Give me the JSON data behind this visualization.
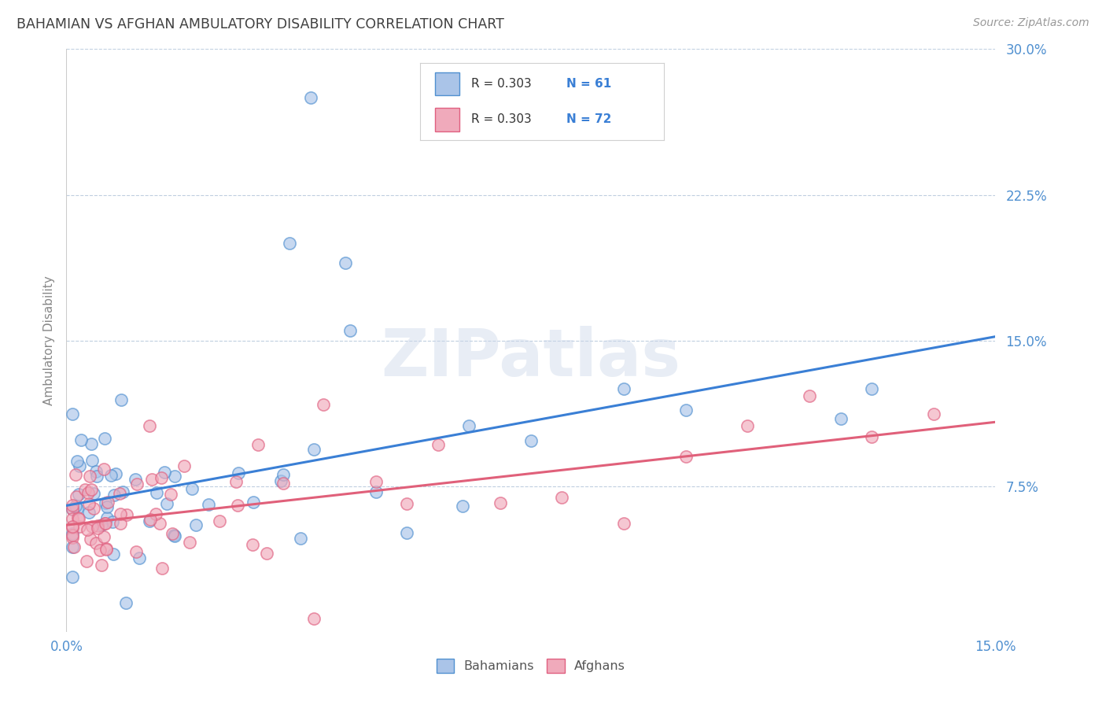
{
  "title": "BAHAMIAN VS AFGHAN AMBULATORY DISABILITY CORRELATION CHART",
  "source": "Source: ZipAtlas.com",
  "ylabel": "Ambulatory Disability",
  "xlim": [
    0.0,
    0.15
  ],
  "ylim": [
    0.0,
    0.3
  ],
  "xticks": [
    0.0,
    0.15
  ],
  "xtick_labels": [
    "0.0%",
    "15.0%"
  ],
  "yticks": [
    0.075,
    0.15,
    0.225,
    0.3
  ],
  "ytick_labels": [
    "7.5%",
    "15.0%",
    "22.5%",
    "30.0%"
  ],
  "bahamian_face_color": "#aac4e8",
  "bahamian_edge_color": "#5090d0",
  "afghan_face_color": "#f0aabb",
  "afghan_edge_color": "#e06080",
  "bahamian_line_color": "#3a7fd5",
  "afghan_line_color": "#e0607a",
  "legend_text_color": "#3a7fd5",
  "legend_label_color": "#333333",
  "R_bahamian": 0.303,
  "N_bahamian": 61,
  "R_afghan": 0.303,
  "N_afghan": 72,
  "watermark": "ZIPatlas",
  "background_color": "#ffffff",
  "grid_color": "#c0cfe0",
  "title_color": "#404040",
  "axis_label_color": "#888888",
  "tick_color": "#5090d0",
  "bah_line_x0": 0.0,
  "bah_line_x1": 0.15,
  "bah_line_y0": 0.065,
  "bah_line_y1": 0.152,
  "afg_line_x0": 0.0,
  "afg_line_x1": 0.15,
  "afg_line_y0": 0.055,
  "afg_line_y1": 0.108,
  "bah_seed": 12,
  "afg_seed": 77
}
